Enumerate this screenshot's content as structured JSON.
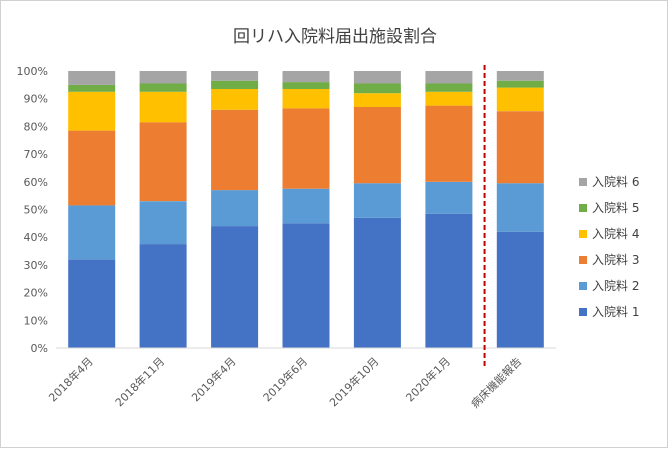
{
  "chart_data": {
    "type": "bar",
    "stacked": true,
    "percent_stacked": true,
    "title": "回リハ入院料届出施設割合",
    "categories": [
      "2018年4月",
      "2018年11月",
      "2019年4月",
      "2019年6月",
      "2019年10月",
      "2020年1月",
      "病床機能報告"
    ],
    "ylim": [
      0,
      100
    ],
    "yticks": [
      "0%",
      "10%",
      "20%",
      "30%",
      "40%",
      "50%",
      "60%",
      "70%",
      "80%",
      "90%",
      "100%"
    ],
    "ytick_values": [
      0,
      10,
      20,
      30,
      40,
      50,
      60,
      70,
      80,
      90,
      100
    ],
    "grid": false,
    "legend_position": "right",
    "reference_line": {
      "between": [
        "2020年1月",
        "病床機能報告"
      ],
      "style": "dashed",
      "color": "#c00000"
    },
    "series": [
      {
        "name": "入院料 1",
        "color": "#4472c4",
        "values": [
          32,
          37.5,
          44,
          45,
          47,
          48.5,
          42
        ]
      },
      {
        "name": "入院料 2",
        "color": "#5b9bd5",
        "values": [
          19.5,
          15.5,
          13,
          12.5,
          12.5,
          11.5,
          17.5
        ]
      },
      {
        "name": "入院料 3",
        "color": "#ed7d31",
        "values": [
          27,
          28.5,
          29,
          29,
          27.5,
          27.5,
          26
        ]
      },
      {
        "name": "入院料 4",
        "color": "#ffc000",
        "values": [
          14,
          11,
          7.5,
          7,
          5,
          5,
          8.5
        ]
      },
      {
        "name": "入院料 5",
        "color": "#70ad47",
        "values": [
          2.5,
          3,
          3,
          2.5,
          3.5,
          3,
          2.5
        ]
      },
      {
        "name": "入院料 6",
        "color": "#a5a5a5",
        "values": [
          5,
          4.5,
          3.5,
          4,
          4.5,
          4.5,
          3.5
        ]
      }
    ]
  }
}
